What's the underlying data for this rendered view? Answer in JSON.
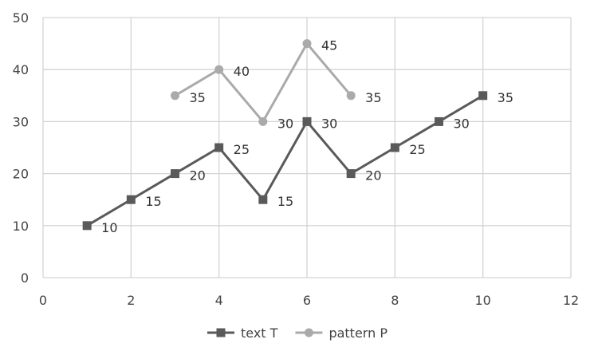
{
  "chart_data": {
    "type": "line",
    "title": "",
    "xlabel": "",
    "ylabel": "",
    "xlim": [
      0,
      12
    ],
    "ylim": [
      0,
      50
    ],
    "x_ticks": [
      0,
      2,
      4,
      6,
      8,
      10,
      12
    ],
    "y_ticks": [
      0,
      10,
      20,
      30,
      40,
      50
    ],
    "grid": true,
    "legend_position": "bottom",
    "series": [
      {
        "name": "text T",
        "marker": "square",
        "color": "#5a5a5a",
        "x": [
          1,
          2,
          3,
          4,
          5,
          6,
          7,
          8,
          9,
          10
        ],
        "y": [
          10,
          15,
          20,
          25,
          15,
          30,
          20,
          25,
          30,
          35
        ]
      },
      {
        "name": "pattern P",
        "marker": "circle",
        "color": "#aaaaaa",
        "x": [
          3,
          4,
          5,
          6,
          7
        ],
        "y": [
          35,
          40,
          30,
          45,
          35
        ]
      }
    ]
  }
}
